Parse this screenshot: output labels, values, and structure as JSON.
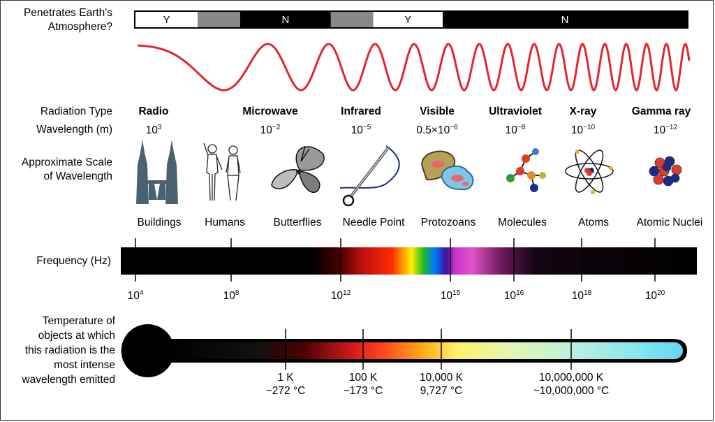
{
  "atmosphere": {
    "label_line1": "Penetrates Earth's",
    "label_line2": "Atmosphere?",
    "segments": [
      {
        "text": "Y",
        "fill": "#ffffff",
        "start": 0.0,
        "end": 0.113
      },
      {
        "text": "",
        "fill": "#888888",
        "start": 0.113,
        "end": 0.19
      },
      {
        "text": "N",
        "fill": "#000000",
        "start": 0.19,
        "end": 0.354
      },
      {
        "text": "",
        "fill": "#888888",
        "start": 0.354,
        "end": 0.431
      },
      {
        "text": "Y",
        "fill": "#ffffff",
        "start": 0.431,
        "end": 0.557
      },
      {
        "text": "N",
        "fill": "#000000",
        "start": 0.557,
        "end": 1.0
      }
    ]
  },
  "wave": {
    "color": "#e3262e"
  },
  "row_labels": {
    "radiation_type": "Radiation Type",
    "wavelength": "Wavelength (m)",
    "scale_line1": "Approximate Scale",
    "scale_line2": "of Wavelength",
    "frequency": "Frequency (Hz)",
    "temperature_lines": [
      "Temperature of",
      "objects at which",
      "this radiation is the",
      "most intense",
      "wavelength emitted"
    ]
  },
  "radiation_types": [
    {
      "name": "Radio",
      "wl_base": "10",
      "wl_exp": "3"
    },
    {
      "name": "Microwave",
      "wl_base": "10",
      "wl_exp": "−2"
    },
    {
      "name": "Infrared",
      "wl_base": "10",
      "wl_exp": "−5"
    },
    {
      "name": "Visible",
      "wl_base": "0.5×10",
      "wl_exp": "−6"
    },
    {
      "name": "Ultraviolet",
      "wl_base": "10",
      "wl_exp": "−8"
    },
    {
      "name": "X-ray",
      "wl_base": "10",
      "wl_exp": "−10"
    },
    {
      "name": "Gamma ray",
      "wl_base": "10",
      "wl_exp": "−12"
    }
  ],
  "scale_objects": [
    {
      "label": "Buildings",
      "icon": "towers-icon"
    },
    {
      "label": "Humans",
      "icon": "humans-icon"
    },
    {
      "label": "Butterflies",
      "icon": "butterfly-icon"
    },
    {
      "label": "Needle Point",
      "icon": "needle-icon"
    },
    {
      "label": "Protozoans",
      "icon": "protozoan-icon"
    },
    {
      "label": "Molecules",
      "icon": "molecule-icon"
    },
    {
      "label": "Atoms",
      "icon": "atom-icon"
    },
    {
      "label": "Atomic Nuclei",
      "icon": "nucleus-icon"
    }
  ],
  "frequency_ticks": [
    {
      "base": "10",
      "exp": "4"
    },
    {
      "base": "10",
      "exp": "8"
    },
    {
      "base": "10",
      "exp": "12"
    },
    {
      "base": "10",
      "exp": "15"
    },
    {
      "base": "10",
      "exp": "16"
    },
    {
      "base": "10",
      "exp": "18"
    },
    {
      "base": "10",
      "exp": "20"
    }
  ],
  "temperature_ticks": [
    {
      "kelvin": "1 K",
      "celsius": "−272 °C"
    },
    {
      "kelvin": "100 K",
      "celsius": "−173 °C"
    },
    {
      "kelvin": "10,000 K",
      "celsius": "9,727 °C"
    },
    {
      "kelvin": "10,000,000 K",
      "celsius": "~10,000,000 °C"
    }
  ]
}
